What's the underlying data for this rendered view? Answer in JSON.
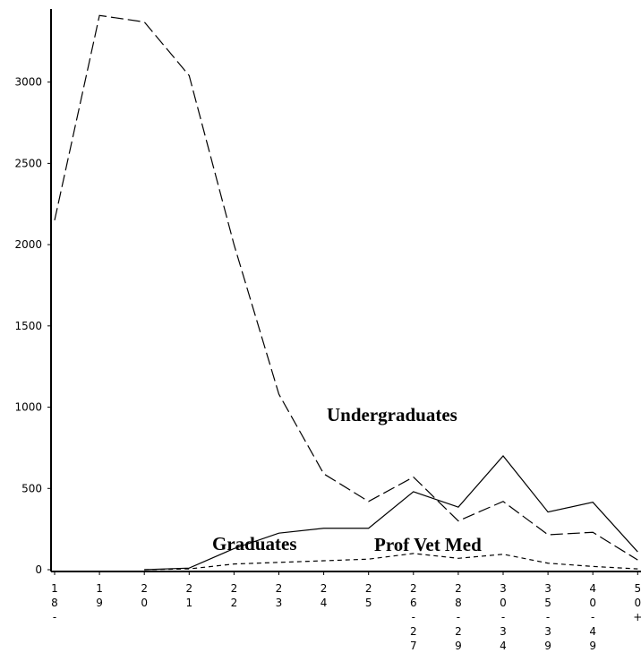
{
  "chart_data": {
    "type": "line",
    "categories": [
      "18-",
      "19",
      "20",
      "21",
      "22",
      "23",
      "24",
      "25",
      "26-27",
      "28-29",
      "30-34",
      "35-39",
      "40-49",
      "50+"
    ],
    "series": [
      {
        "name": "Undergraduates",
        "color": "#000000",
        "dash": "14,5",
        "values": [
          2150,
          3410,
          3370,
          3040,
          2000,
          1080,
          590,
          420,
          570,
          300,
          420,
          215,
          230,
          60
        ]
      },
      {
        "name": "Graduates",
        "color": "#000000",
        "dash": "none",
        "values": [
          null,
          null,
          0,
          10,
          130,
          225,
          255,
          255,
          480,
          385,
          700,
          355,
          415,
          110
        ]
      },
      {
        "name": "Prof Vet Med",
        "color": "#000000",
        "dash": "5,4",
        "values": [
          null,
          null,
          0,
          5,
          35,
          45,
          55,
          65,
          100,
          70,
          95,
          40,
          20,
          5
        ]
      }
    ],
    "ylim": [
      0,
      3450
    ],
    "yticks": [
      0,
      500,
      1000,
      1500,
      2000,
      2500,
      3000
    ],
    "grid": false
  }
}
